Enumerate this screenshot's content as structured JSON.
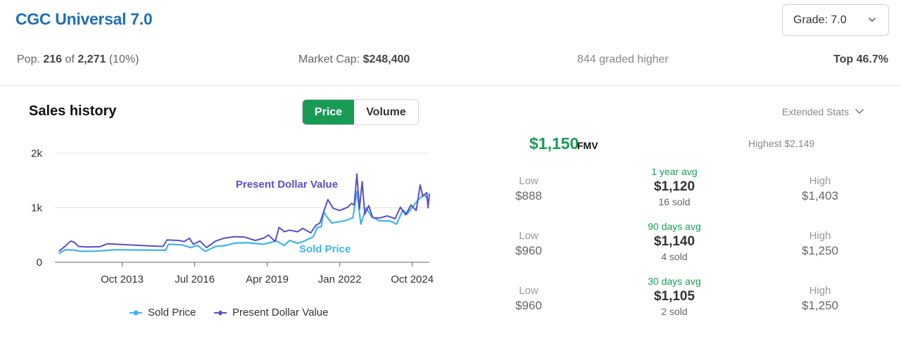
{
  "header": {
    "title": "CGC Universal 7.0",
    "grade_select": "Grade: 7.0"
  },
  "stats": {
    "pop_label": "Pop.",
    "pop_count": "216",
    "pop_of": "of",
    "pop_total": "2,271",
    "pop_pct": "(10%)",
    "market_cap_label": "Market Cap:",
    "market_cap_value": "$248,400",
    "graded_higher": "844 graded higher",
    "top_pct": "Top 46.7%"
  },
  "sales": {
    "title": "Sales history",
    "toggle": {
      "price": "Price",
      "volume": "Volume",
      "active": "price"
    },
    "extended_stats": "Extended Stats"
  },
  "fmv": {
    "value": "$1,150",
    "label": "FMV",
    "highest": "Highest $2,149"
  },
  "periods": [
    {
      "low_label": "Low",
      "low": "$888",
      "avg_label": "1 year avg",
      "avg": "$1,120",
      "sold": "16 sold",
      "high_label": "High",
      "high": "$1,403"
    },
    {
      "low_label": "Low",
      "low": "$960",
      "avg_label": "90 days avg",
      "avg": "$1,140",
      "sold": "4 sold",
      "high_label": "High",
      "high": "$1,250"
    },
    {
      "low_label": "Low",
      "low": "$960",
      "avg_label": "30 days avg",
      "avg": "$1,105",
      "sold": "2 sold",
      "high_label": "High",
      "high": "$1,250"
    }
  ],
  "colors": {
    "accent_green": "#1a9b55",
    "title_blue": "#1f6fb5",
    "sold_price": "#3fb4ec",
    "present_dollar": "#5a50c2"
  },
  "icons": {
    "grade_chevron": "chevron-down-icon",
    "extended_chevron": "chevron-down-icon"
  },
  "chart_data": {
    "type": "line",
    "x_tick_labels": [
      "Oct 2013",
      "Jul 2016",
      "Apr 2019",
      "Jan 2022",
      "Oct 2024"
    ],
    "x_tick_values": [
      2013.75,
      2016.5,
      2019.25,
      2022.0,
      2024.75
    ],
    "y_tick_labels": [
      "0",
      "1k",
      "2k"
    ],
    "y_tick_values": [
      0,
      1000,
      2000
    ],
    "xlim": [
      2011.2,
      2025.4
    ],
    "ylim": [
      0,
      2000
    ],
    "grid": "horizontal",
    "legend_placement": "bottom",
    "series": [
      {
        "name": "Sold Price",
        "annotation": "Sold Price",
        "color": "#3fb4ec",
        "points": [
          [
            2011.35,
            160
          ],
          [
            2011.6,
            230
          ],
          [
            2011.9,
            225
          ],
          [
            2012.2,
            200
          ],
          [
            2012.8,
            205
          ],
          [
            2013.5,
            230
          ],
          [
            2014.5,
            225
          ],
          [
            2015.4,
            220
          ],
          [
            2015.5,
            330
          ],
          [
            2016.0,
            320
          ],
          [
            2016.35,
            270
          ],
          [
            2016.6,
            310
          ],
          [
            2016.9,
            200
          ],
          [
            2017.3,
            290
          ],
          [
            2017.7,
            310
          ],
          [
            2018.0,
            350
          ],
          [
            2018.5,
            360
          ],
          [
            2019.1,
            330
          ],
          [
            2019.6,
            390
          ],
          [
            2019.9,
            310
          ],
          [
            2020.1,
            400
          ],
          [
            2020.4,
            350
          ],
          [
            2020.6,
            380
          ],
          [
            2020.8,
            420
          ],
          [
            2021.0,
            470
          ],
          [
            2021.15,
            640
          ],
          [
            2021.3,
            650
          ],
          [
            2021.4,
            930
          ],
          [
            2021.5,
            840
          ],
          [
            2021.7,
            720
          ],
          [
            2022.2,
            760
          ],
          [
            2022.5,
            820
          ],
          [
            2022.65,
            1300
          ],
          [
            2022.8,
            700
          ],
          [
            2023.0,
            1000
          ],
          [
            2023.2,
            840
          ],
          [
            2023.5,
            760
          ],
          [
            2023.9,
            760
          ],
          [
            2024.15,
            700
          ],
          [
            2024.4,
            960
          ],
          [
            2024.55,
            880
          ],
          [
            2024.8,
            1040
          ],
          [
            2025.0,
            1160
          ],
          [
            2025.2,
            1240
          ],
          [
            2025.3,
            1180
          ]
        ]
      },
      {
        "name": "Present Dollar Value",
        "annotation": "Present Dollar Value",
        "color": "#5a50c2",
        "points": [
          [
            2011.35,
            200
          ],
          [
            2011.6,
            300
          ],
          [
            2011.8,
            390
          ],
          [
            2011.95,
            360
          ],
          [
            2012.1,
            290
          ],
          [
            2012.4,
            280
          ],
          [
            2012.9,
            285
          ],
          [
            2013.2,
            340
          ],
          [
            2014.0,
            320
          ],
          [
            2014.8,
            300
          ],
          [
            2015.3,
            290
          ],
          [
            2015.45,
            410
          ],
          [
            2015.9,
            400
          ],
          [
            2016.1,
            380
          ],
          [
            2016.3,
            440
          ],
          [
            2016.45,
            330
          ],
          [
            2016.7,
            390
          ],
          [
            2016.95,
            270
          ],
          [
            2017.3,
            390
          ],
          [
            2017.6,
            440
          ],
          [
            2018.0,
            470
          ],
          [
            2018.4,
            460
          ],
          [
            2018.8,
            400
          ],
          [
            2019.1,
            440
          ],
          [
            2019.3,
            500
          ],
          [
            2019.55,
            380
          ],
          [
            2019.7,
            640
          ],
          [
            2019.9,
            560
          ],
          [
            2020.1,
            590
          ],
          [
            2020.4,
            560
          ],
          [
            2020.6,
            620
          ],
          [
            2020.9,
            540
          ],
          [
            2021.1,
            680
          ],
          [
            2021.25,
            720
          ],
          [
            2021.4,
            940
          ],
          [
            2021.55,
            1150
          ],
          [
            2021.75,
            990
          ],
          [
            2022.0,
            950
          ],
          [
            2022.3,
            1010
          ],
          [
            2022.45,
            1080
          ],
          [
            2022.55,
            1050
          ],
          [
            2022.65,
            1620
          ],
          [
            2022.75,
            980
          ],
          [
            2022.85,
            1480
          ],
          [
            2022.95,
            880
          ],
          [
            2023.1,
            1040
          ],
          [
            2023.25,
            820
          ],
          [
            2023.5,
            810
          ],
          [
            2023.8,
            850
          ],
          [
            2024.1,
            800
          ],
          [
            2024.3,
            1010
          ],
          [
            2024.5,
            870
          ],
          [
            2024.7,
            1050
          ],
          [
            2024.9,
            950
          ],
          [
            2025.05,
            1420
          ],
          [
            2025.15,
            1210
          ],
          [
            2025.3,
            1280
          ],
          [
            2025.35,
            1000
          ],
          [
            2025.4,
            1260
          ]
        ]
      }
    ]
  }
}
